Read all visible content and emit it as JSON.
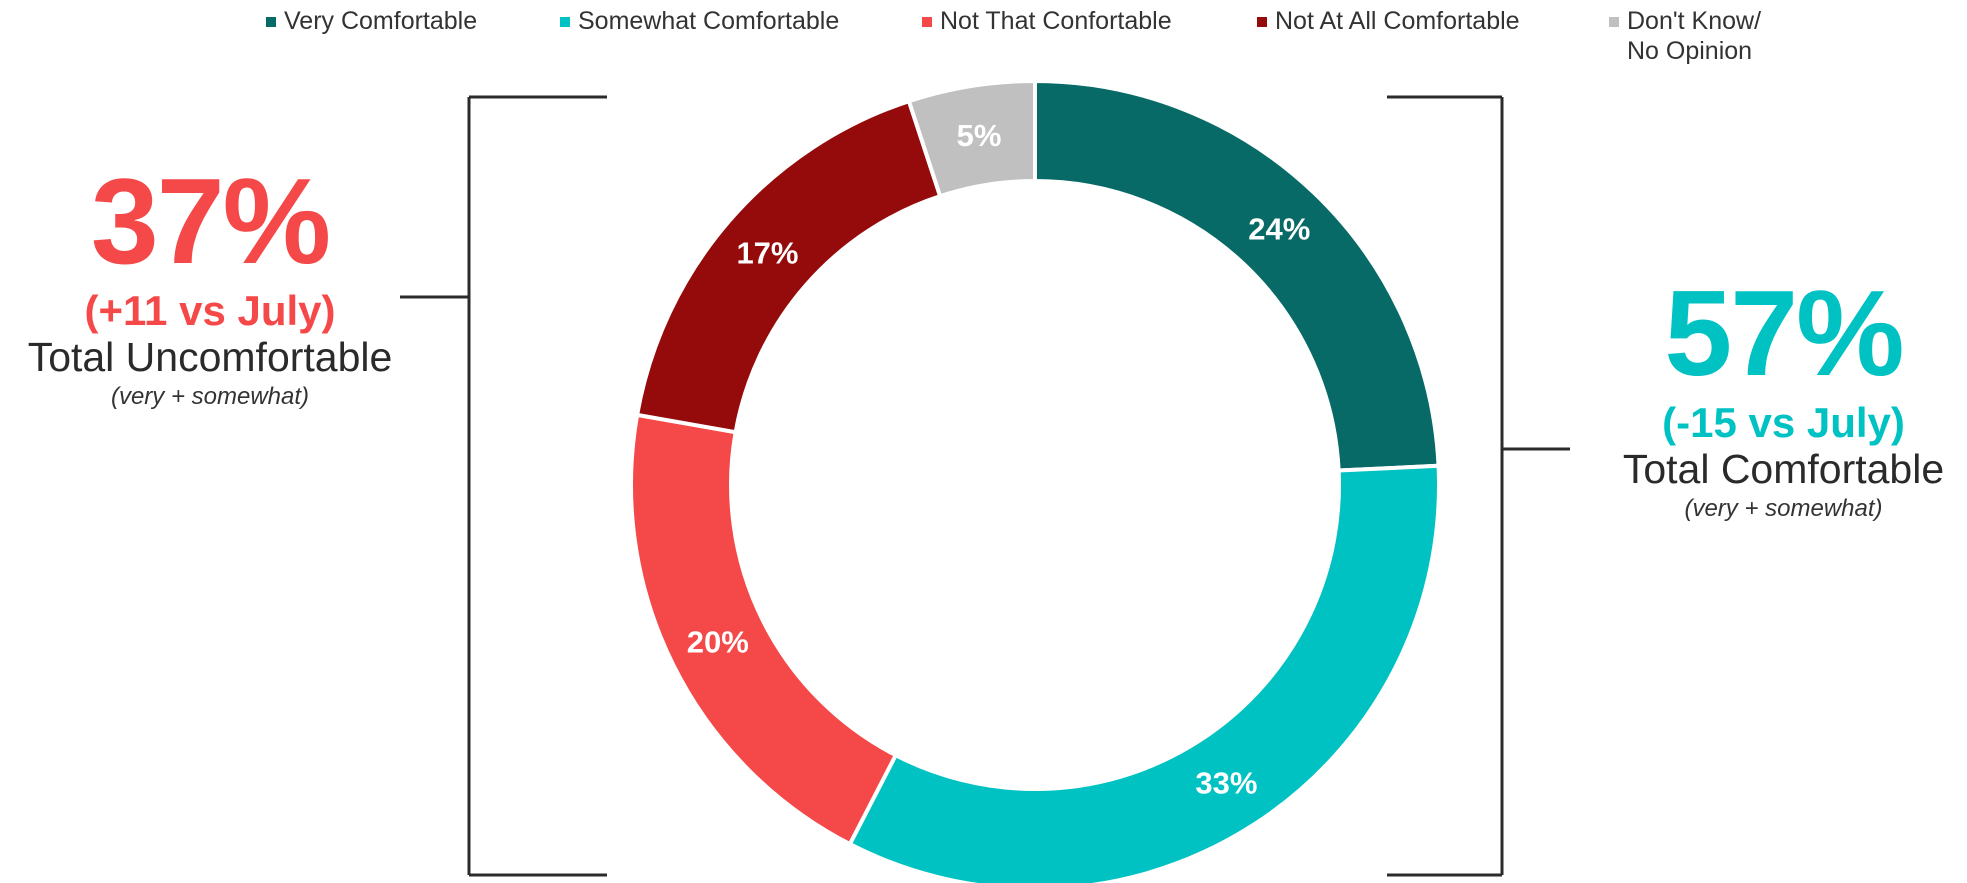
{
  "chart_data": {
    "type": "pie",
    "variant": "donut",
    "title": "",
    "categories": [
      "Very Comfortable",
      "Somewhat Comfortable",
      "Not That Confortable",
      "Not At All Comfortable",
      "Don't Know/\nNo Opinion"
    ],
    "values": [
      24,
      33,
      20,
      17,
      5
    ],
    "value_labels": [
      "24%",
      "33%",
      "20%",
      "17%",
      "5%"
    ],
    "colors": [
      "#076a66",
      "#00c2c2",
      "#f54848",
      "#950b0b",
      "#c0c0c0"
    ],
    "label_colors": [
      "#ffffff",
      "#ffffff",
      "#ffffff",
      "#ffffff",
      "#ffffff"
    ],
    "legend_position": "top"
  },
  "callouts": {
    "uncomfortable": {
      "pct": "37%",
      "delta": "(+11 vs July)",
      "label": "Total Uncomfortable",
      "sublabel": "(very + somewhat)",
      "color": "#f54848"
    },
    "comfortable": {
      "pct": "57%",
      "delta": "(-15 vs July)",
      "label": "Total Comfortable",
      "sublabel": "(very + somewhat)",
      "color": "#00c2c2"
    }
  }
}
